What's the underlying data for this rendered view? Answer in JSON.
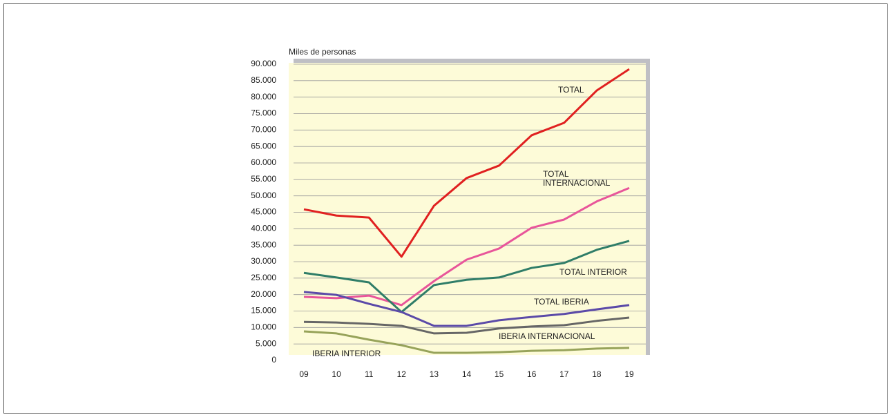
{
  "chart_data": {
    "type": "line",
    "y_label": "Miles de personas",
    "categories": [
      "09",
      "10",
      "11",
      "12",
      "13",
      "14",
      "15",
      "16",
      "17",
      "18",
      "19"
    ],
    "ylim": [
      0,
      90000
    ],
    "yticks": [
      0,
      {
        "value": 5000,
        "label": "5.000"
      },
      {
        "value": 10000,
        "label": "10.000"
      },
      {
        "value": 15000,
        "label": "15.000"
      },
      {
        "value": 20000,
        "label": "20.000"
      },
      {
        "value": 25000,
        "label": "25.000"
      },
      {
        "value": 30000,
        "label": "30.000"
      },
      {
        "value": 35000,
        "label": "35.000"
      },
      {
        "value": 40000,
        "label": "40.000"
      },
      {
        "value": 45000,
        "label": "45.000"
      },
      {
        "value": 50000,
        "label": "50.000"
      },
      {
        "value": 55000,
        "label": "55.000"
      },
      {
        "value": 60000,
        "label": "60.000"
      },
      {
        "value": 65000,
        "label": "65.000"
      },
      {
        "value": 70000,
        "label": "70.000"
      },
      {
        "value": 75000,
        "label": "75.000"
      },
      {
        "value": 80000,
        "label": "80.000"
      },
      {
        "value": 85000,
        "label": "85.000"
      },
      {
        "value": 90000,
        "label": "90.000"
      }
    ],
    "grid": true,
    "series": [
      {
        "name": "TOTAL",
        "color": "#e02020",
        "values": [
          45900,
          44000,
          43400,
          31500,
          47000,
          55400,
          59200,
          68400,
          72200,
          82000,
          88500
        ]
      },
      {
        "name": "TOTAL INTERNACIONAL",
        "color": "#e8559a",
        "values": [
          19300,
          18900,
          19700,
          16800,
          24100,
          30600,
          34000,
          40300,
          42800,
          48300,
          52400
        ]
      },
      {
        "name": "TOTAL INTERIOR",
        "color": "#2f7d68",
        "values": [
          26600,
          25200,
          23700,
          14700,
          22900,
          24500,
          25200,
          28100,
          29600,
          33600,
          36300
        ]
      },
      {
        "name": "TOTAL IBERIA",
        "color": "#5b4aa8",
        "values": [
          20800,
          19900,
          17200,
          14700,
          10500,
          10500,
          12200,
          13200,
          14100,
          15500,
          16800
        ]
      },
      {
        "name": "IBERIA INTERNACIONAL",
        "color": "#666666",
        "values": [
          11700,
          11500,
          11100,
          10500,
          8200,
          8400,
          9700,
          10300,
          10700,
          12000,
          13000
        ]
      },
      {
        "name": "IBERIA INTERIOR",
        "color": "#97a35a",
        "values": [
          8800,
          8200,
          6300,
          4600,
          2300,
          2300,
          2500,
          2900,
          3100,
          3600,
          3800
        ]
      }
    ]
  }
}
